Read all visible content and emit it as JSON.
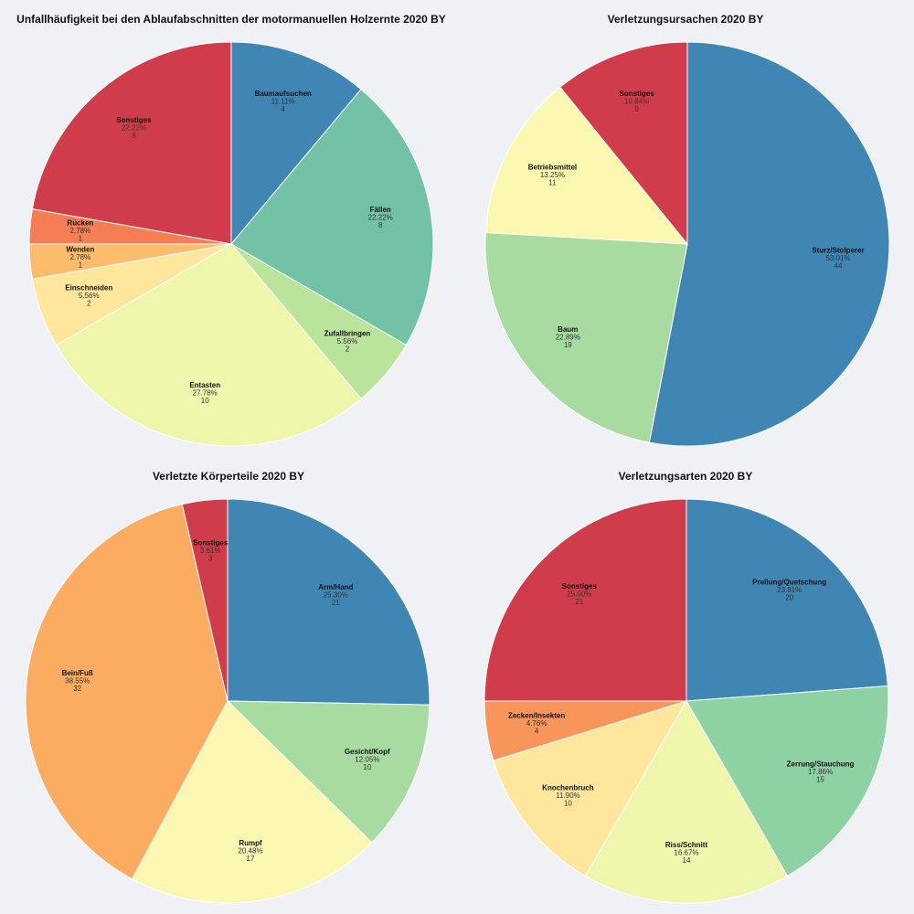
{
  "chart_data": [
    {
      "type": "pie",
      "title": "Unfallhäufigkeit bei den Ablaufabschnitten der motormanuellen Holzernte 2020 BY",
      "slices": [
        {
          "label": "Baumaufsuchen",
          "pct": "11.11%",
          "value": 4,
          "color": "#3f86b5"
        },
        {
          "label": "Fällen",
          "pct": "22.22%",
          "value": 8,
          "color": "#72c2a7"
        },
        {
          "label": "Zufallbringen",
          "pct": "5.56%",
          "value": 2,
          "color": "#bae39c"
        },
        {
          "label": "Entasten",
          "pct": "27.78%",
          "value": 10,
          "color": "#eef6ac"
        },
        {
          "label": "Einschneiden",
          "pct": "5.56%",
          "value": 2,
          "color": "#fee69c"
        },
        {
          "label": "Wenden",
          "pct": "2.78%",
          "value": 1,
          "color": "#fdbb6c"
        },
        {
          "label": "Rücken",
          "pct": "2.78%",
          "value": 1,
          "color": "#f47f54"
        },
        {
          "label": "Sonstiges",
          "pct": "22.22%",
          "value": 8,
          "color": "#d13c4b"
        }
      ]
    },
    {
      "type": "pie",
      "title": "Verletzungsursachen 2020 BY",
      "slices": [
        {
          "label": "Sturz/Stolperer",
          "pct": "53.01%",
          "value": 44,
          "color": "#3f86b5"
        },
        {
          "label": "Baum",
          "pct": "22.89%",
          "value": 19,
          "color": "#a7dba0"
        },
        {
          "label": "Betriebsmittel",
          "pct": "13.25%",
          "value": 11,
          "color": "#faf8b0"
        },
        {
          "label": "Sonstiges",
          "pct": "10.84%",
          "value": 9,
          "color": "#d13c4b"
        }
      ]
    },
    {
      "type": "pie",
      "title": "Verletzte Körperteile 2020 BY",
      "slices": [
        {
          "label": "Arm/Hand",
          "pct": "25.30%",
          "value": 21,
          "color": "#3f86b5"
        },
        {
          "label": "Gesicht/Kopf",
          "pct": "12.05%",
          "value": 10,
          "color": "#a7dba0"
        },
        {
          "label": "Rumpf",
          "pct": "20.48%",
          "value": 17,
          "color": "#faf8b0"
        },
        {
          "label": "Bein/Fuß",
          "pct": "38.55%",
          "value": 32,
          "color": "#fcac60"
        },
        {
          "label": "Sonstiges",
          "pct": "3.61%",
          "value": 3,
          "color": "#d13c4b"
        }
      ]
    },
    {
      "type": "pie",
      "title": "Verletzungsarten 2020 BY",
      "slices": [
        {
          "label": "Prellung/Quetschung",
          "pct": "23.81%",
          "value": 20,
          "color": "#3f86b5"
        },
        {
          "label": "Zerrung/Stauchung",
          "pct": "17.86%",
          "value": 15,
          "color": "#8ed1a3"
        },
        {
          "label": "Riss/Schnitt",
          "pct": "16.67%",
          "value": 14,
          "color": "#eef6ac"
        },
        {
          "label": "Knochenbruch",
          "pct": "11.90%",
          "value": 10,
          "color": "#fee69c"
        },
        {
          "label": "Zecken/Insekten",
          "pct": "4.76%",
          "value": 4,
          "color": "#f8955b"
        },
        {
          "label": "Sonstiges",
          "pct": "25.00%",
          "value": 21,
          "color": "#d13c4b"
        }
      ]
    }
  ]
}
